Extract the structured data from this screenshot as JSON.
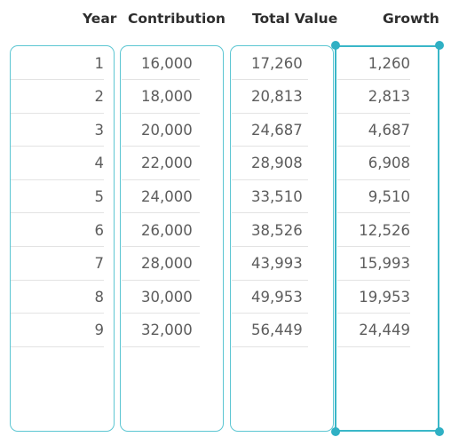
{
  "headers": {
    "year": "Year",
    "contribution": "Contribution",
    "total_value": "Total Value",
    "growth": "Growth"
  },
  "rows": [
    {
      "year": "1",
      "contribution": "16,000",
      "total_value": "17,260",
      "growth": "1,260"
    },
    {
      "year": "2",
      "contribution": "18,000",
      "total_value": "20,813",
      "growth": "2,813"
    },
    {
      "year": "3",
      "contribution": "20,000",
      "total_value": "24,687",
      "growth": "4,687"
    },
    {
      "year": "4",
      "contribution": "22,000",
      "total_value": "28,908",
      "growth": "6,908"
    },
    {
      "year": "5",
      "contribution": "24,000",
      "total_value": "33,510",
      "growth": "9,510"
    },
    {
      "year": "6",
      "contribution": "26,000",
      "total_value": "38,526",
      "growth": "12,526"
    },
    {
      "year": "7",
      "contribution": "28,000",
      "total_value": "43,993",
      "growth": "15,993"
    },
    {
      "year": "8",
      "contribution": "30,000",
      "total_value": "49,953",
      "growth": "19,953"
    },
    {
      "year": "9",
      "contribution": "32,000",
      "total_value": "56,449",
      "growth": "24,449"
    }
  ],
  "selected_column": "growth",
  "colors": {
    "column_border": "#5cc6d2",
    "selection": "#2fb0c4",
    "row_divider": "#e3e3e3"
  }
}
